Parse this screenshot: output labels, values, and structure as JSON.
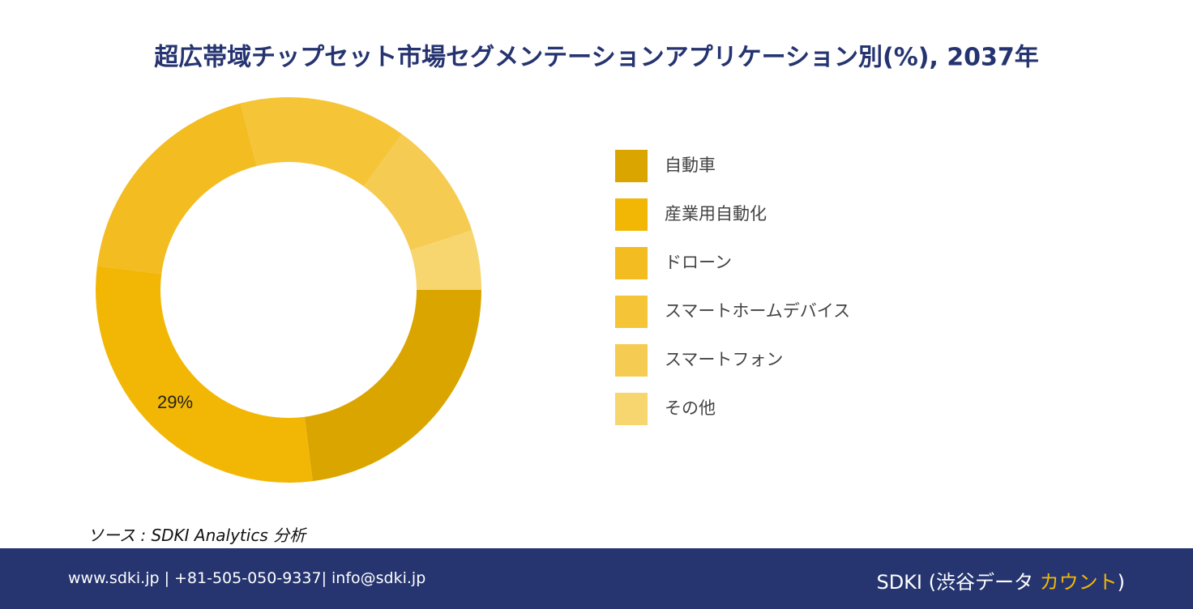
{
  "chart_data": {
    "type": "donut",
    "title": "超広帯域チップセット市場セグメンテーションアプリケーション別(%), 2037年",
    "categories": [
      "自動車",
      "産業用自動化",
      "ドローン",
      "スマートホームデバイス",
      "スマートフォン",
      "その他"
    ],
    "values": [
      23,
      29,
      19,
      14,
      10,
      5
    ],
    "value_labels": [
      null,
      "29%",
      null,
      null,
      null,
      null
    ],
    "colors": [
      "#dba500",
      "#f2b705",
      "#f3bc21",
      "#f5c437",
      "#f6cb52",
      "#f7d56f"
    ],
    "legend": "right"
  },
  "source": "ソース : SDKI Analytics 分析",
  "footer": {
    "contact": "www.sdki.jp | +81-505-050-9337| info@sdki.jp",
    "brand": "SDKI (渋谷データ ",
    "brand_accent": "カウント",
    "brand_end": ")"
  }
}
